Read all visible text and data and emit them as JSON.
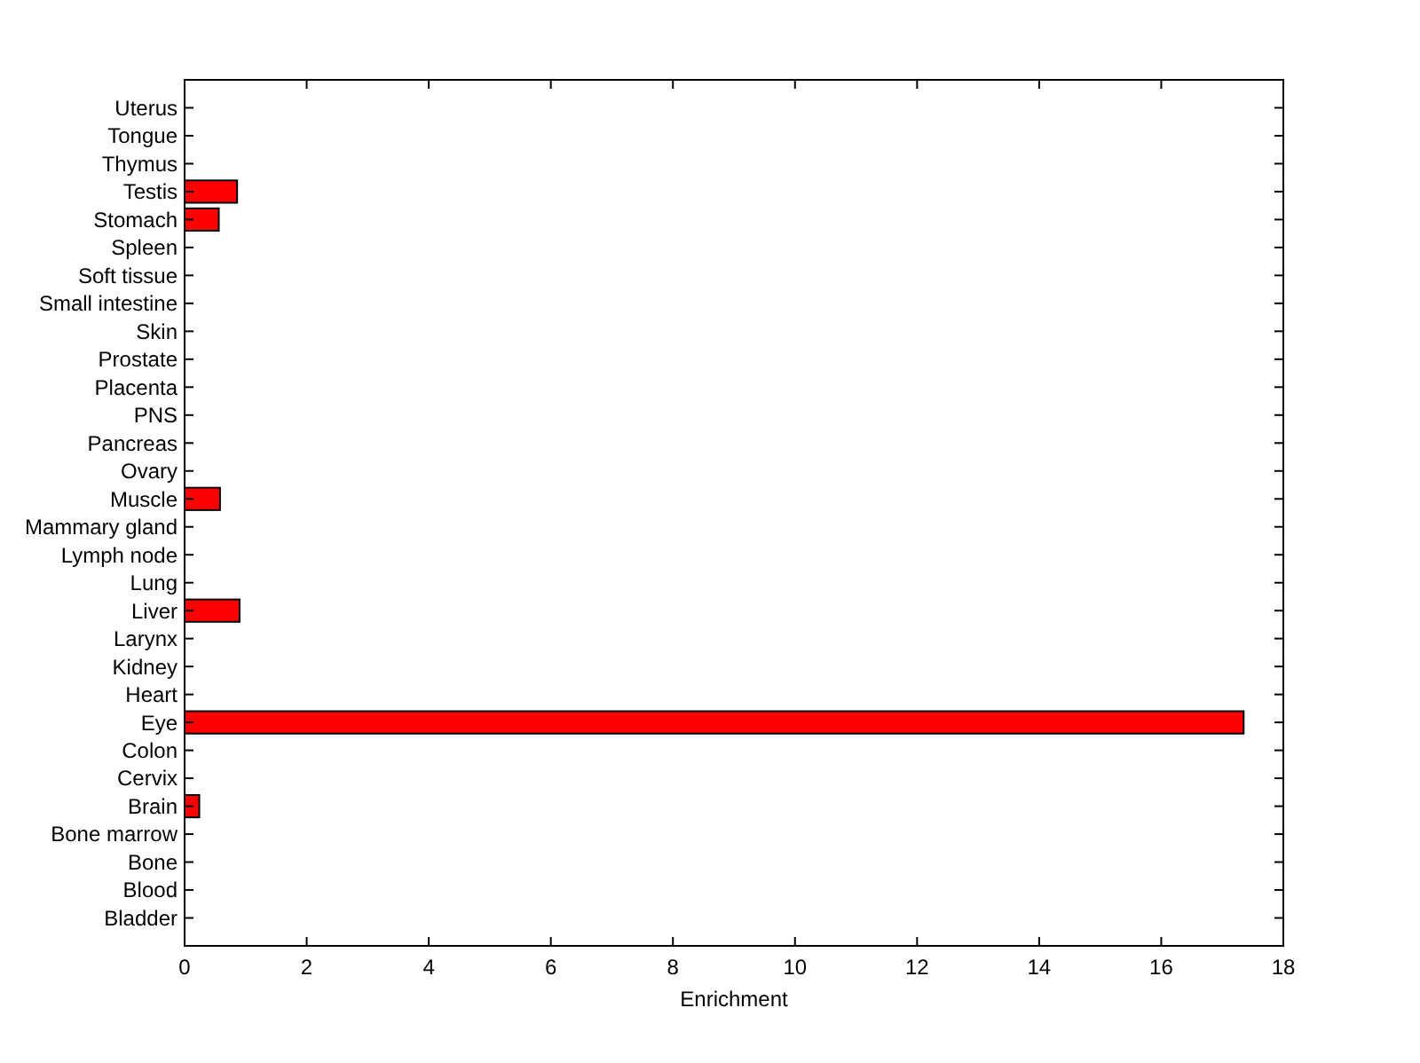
{
  "chart_data": {
    "type": "bar",
    "orientation": "horizontal",
    "xlabel": "Enrichment",
    "categories": [
      "Uterus",
      "Tongue",
      "Thymus",
      "Testis",
      "Stomach",
      "Spleen",
      "Soft tissue",
      "Small intestine",
      "Skin",
      "Prostate",
      "Placenta",
      "PNS",
      "Pancreas",
      "Ovary",
      "Muscle",
      "Mammary gland",
      "Lymph node",
      "Lung",
      "Liver",
      "Larynx",
      "Kidney",
      "Heart",
      "Eye",
      "Colon",
      "Cervix",
      "Brain",
      "Bone marrow",
      "Bone",
      "Blood",
      "Bladder"
    ],
    "values": [
      0,
      0,
      0,
      0.86,
      0.56,
      0,
      0,
      0,
      0,
      0,
      0,
      0,
      0,
      0,
      0.58,
      0,
      0,
      0,
      0.9,
      0,
      0,
      0,
      17.35,
      0,
      0,
      0.24,
      0,
      0,
      0,
      0
    ],
    "color": "#ff0000",
    "xlim": [
      0,
      18
    ],
    "xticks": [
      0,
      2,
      4,
      6,
      8,
      10,
      12,
      14,
      16,
      18
    ]
  }
}
